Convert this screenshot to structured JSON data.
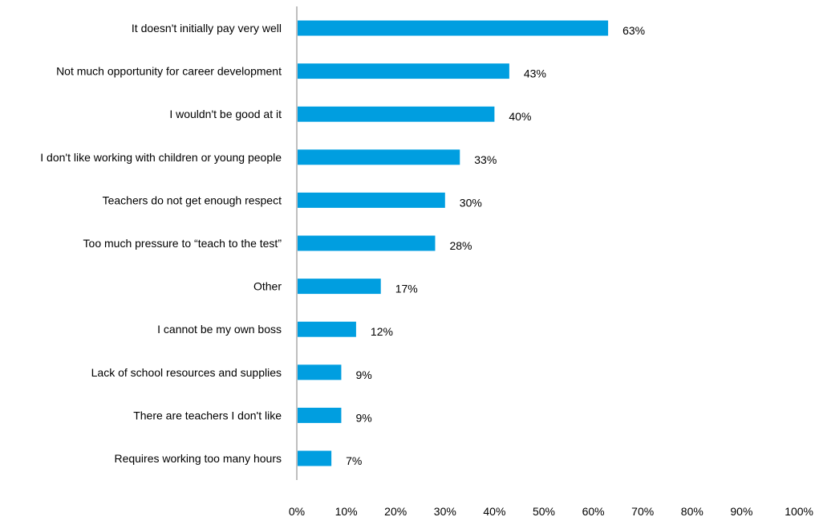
{
  "chart_data": {
    "type": "bar",
    "orientation": "horizontal",
    "categories": [
      "It doesn't initially pay very well",
      "Not much opportunity for career development",
      "I wouldn't be good at it",
      "I don't like working with children or young people",
      "Teachers do not get enough respect",
      "Too much pressure to “teach to the test”",
      "Other",
      "I cannot be my own boss",
      "Lack of school resources and supplies",
      "There are teachers I don't like",
      "Requires working too many hours"
    ],
    "values": [
      63,
      43,
      40,
      33,
      30,
      28,
      17,
      12,
      9,
      9,
      7
    ],
    "value_labels": [
      "63%",
      "43%",
      "40%",
      "33%",
      "30%",
      "28%",
      "17%",
      "12%",
      "9%",
      "9%",
      "7%"
    ],
    "title": "",
    "xlabel": "",
    "ylabel": "",
    "xlim": [
      0,
      100
    ],
    "x_ticks": [
      0,
      10,
      20,
      30,
      40,
      50,
      60,
      70,
      80,
      90,
      100
    ],
    "x_tick_labels": [
      "0%",
      "10%",
      "20%",
      "30%",
      "40%",
      "50%",
      "60%",
      "70%",
      "80%",
      "90%",
      "100%"
    ],
    "grid": false,
    "bar_color": "#009EE0",
    "axis_color": "#BFBFBF"
  }
}
